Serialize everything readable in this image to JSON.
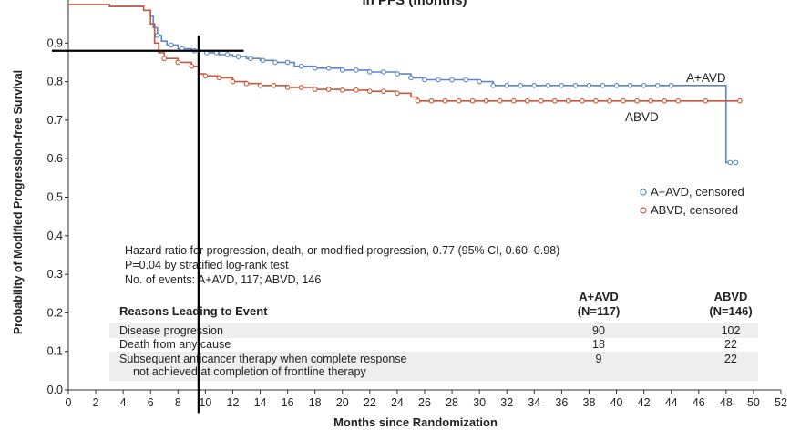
{
  "chart_data": {
    "type": "line",
    "title": "in PFS (months)",
    "xlabel": "Months since Randomization",
    "ylabel": "Probability of Modified Progression-free Survival",
    "xlim": [
      0,
      52
    ],
    "ylim": [
      0,
      1.0
    ],
    "x_ticks": [
      "0",
      "2",
      "4",
      "6",
      "8",
      "10",
      "12",
      "14",
      "16",
      "18",
      "20",
      "22",
      "24",
      "26",
      "28",
      "30",
      "32",
      "34",
      "36",
      "38",
      "40",
      "42",
      "44",
      "46",
      "48",
      "50",
      "52"
    ],
    "y_ticks": [
      "0.0",
      "0.1",
      "0.2",
      "0.3",
      "0.4",
      "0.5",
      "0.6",
      "0.7",
      "0.8",
      "0.9"
    ],
    "grid": false,
    "series": [
      {
        "name": "A+AVD",
        "color": "#5b87c5",
        "step": true,
        "x": [
          0,
          3,
          5.5,
          6,
          6.2,
          6.5,
          6.8,
          7.2,
          8,
          9,
          10,
          11,
          12,
          13,
          14,
          15,
          16.5,
          18,
          20,
          22,
          24,
          25,
          26,
          28,
          30,
          31,
          32,
          34,
          36,
          38,
          40,
          42,
          44,
          46,
          47,
          48,
          48.5
        ],
        "y": [
          1.0,
          0.995,
          0.985,
          0.97,
          0.94,
          0.92,
          0.905,
          0.895,
          0.885,
          0.88,
          0.875,
          0.87,
          0.865,
          0.86,
          0.855,
          0.85,
          0.84,
          0.835,
          0.83,
          0.825,
          0.82,
          0.81,
          0.805,
          0.805,
          0.8,
          0.79,
          0.79,
          0.79,
          0.79,
          0.79,
          0.79,
          0.79,
          0.79,
          0.79,
          0.79,
          0.59,
          0.59
        ]
      },
      {
        "name": "ABVD",
        "color": "#c8593b",
        "step": true,
        "x": [
          0,
          3,
          5.5,
          6,
          6.3,
          6.6,
          7,
          8,
          9,
          9.5,
          10,
          11,
          12,
          13,
          14,
          16,
          18,
          20,
          22,
          24,
          25,
          25.5,
          26,
          28,
          30,
          32,
          34,
          36,
          38,
          40,
          42,
          44,
          46,
          48,
          49
        ],
        "y": [
          1.0,
          0.995,
          0.985,
          0.95,
          0.9,
          0.875,
          0.86,
          0.85,
          0.84,
          0.82,
          0.815,
          0.81,
          0.8,
          0.795,
          0.79,
          0.785,
          0.78,
          0.778,
          0.775,
          0.77,
          0.76,
          0.75,
          0.75,
          0.75,
          0.75,
          0.75,
          0.75,
          0.75,
          0.75,
          0.75,
          0.75,
          0.75,
          0.75,
          0.75,
          0.75
        ]
      }
    ],
    "censored_points": {
      "A+AVD": [
        6.5,
        7.5,
        8.3,
        9.2,
        10.1,
        10.8,
        11.6,
        12.4,
        13.3,
        14.2,
        15.1,
        16.0,
        17.0,
        18.0,
        19.0,
        20.0,
        21.0,
        22.0,
        23.0,
        24.0,
        25.0,
        26.0,
        27.0,
        28.0,
        29.0,
        30.0,
        31.0,
        32.0,
        33.0,
        34.0,
        35.0,
        36.0,
        37.0,
        38.0,
        39.0,
        40.0,
        41.0,
        42.0,
        43.0,
        44.0,
        48.3,
        48.7
      ],
      "ABVD": [
        7.0,
        8.0,
        9.0,
        10.0,
        11.0,
        12.0,
        13.0,
        14.0,
        15.0,
        16.0,
        17.0,
        18.0,
        19.0,
        20.0,
        21.0,
        22.0,
        23.0,
        24.0,
        25.5,
        26.5,
        27.5,
        28.5,
        29.5,
        30.5,
        31.5,
        32.5,
        33.5,
        34.5,
        35.5,
        36.5,
        37.5,
        38.5,
        39.5,
        40.5,
        41.5,
        42.5,
        43.5,
        44.5,
        46.5,
        49.0
      ]
    },
    "curve_labels": [
      "A+AVD",
      "ABVD"
    ],
    "legend": {
      "placement": "right",
      "entries": [
        {
          "label": "A+AVD, censored",
          "color": "#5b87c5"
        },
        {
          "label": "ABVD, censored",
          "color": "#c8593b"
        }
      ]
    },
    "annotations": [
      "Hazard ratio for progression, death, or modified progression, 0.77 (95% CI, 0.60–0.98)",
      "P=0.04 by stratified log-rank test",
      "No. of events: A+AVD, 117; ABVD, 146"
    ],
    "reference_lines": [
      {
        "orientation": "horizontal",
        "y": 0.88,
        "x_from": -1.2,
        "x_to": 12.8
      },
      {
        "orientation": "vertical",
        "x": 9.5,
        "y_from": -0.06,
        "y_to": 0.92
      }
    ],
    "table": {
      "header": "Reasons Leading to Event",
      "columns": [
        {
          "name": "A+AVD",
          "n": "(N=117)"
        },
        {
          "name": "ABVD",
          "n": "(N=146)"
        }
      ],
      "rows": [
        {
          "reason": [
            "Disease progression"
          ],
          "a": "90",
          "b": "102"
        },
        {
          "reason": [
            "Death from any cause"
          ],
          "a": "18",
          "b": "22"
        },
        {
          "reason": [
            "Subsequent anticancer therapy when complete response",
            "not achieved at completion of frontline therapy"
          ],
          "a": "9",
          "b": "22"
        }
      ]
    }
  }
}
